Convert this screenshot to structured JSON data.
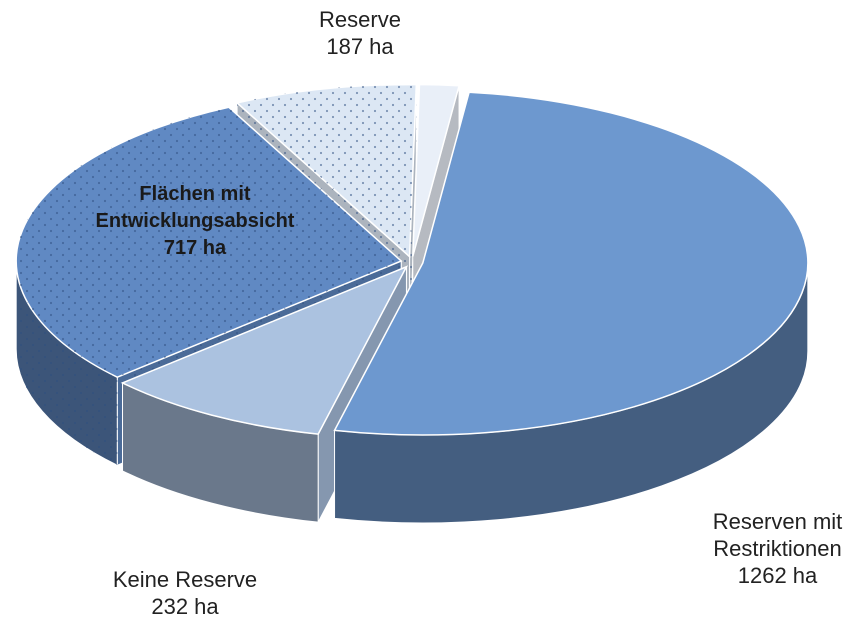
{
  "chart_data": {
    "type": "pie3d",
    "categories": [
      null,
      "Reserven mit Restriktionen",
      "Keine Reserve",
      "Flächen mit Entwicklungsabsicht",
      "Reserve"
    ],
    "values": [
      40,
      1262,
      232,
      717,
      187
    ],
    "value_labels": [
      null,
      "1262 ha",
      "232 ha",
      "717 ha",
      "187 ha"
    ],
    "colors": [
      "#e9eff8",
      "#6d98cf",
      "#abc2e0",
      "#6089c3",
      "#dce7f4"
    ],
    "dotted": [
      false,
      false,
      false,
      true,
      true
    ]
  }
}
